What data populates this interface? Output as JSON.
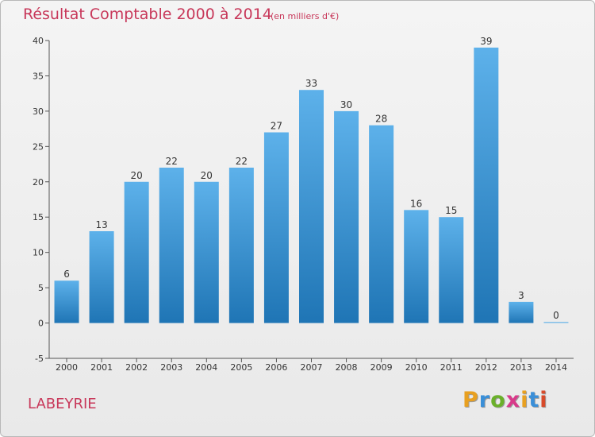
{
  "title": "Résultat Comptable 2000 à 2014",
  "subtitle": "(en milliers d'€)",
  "commune": "LABEYRIE",
  "logo": {
    "text": "Proxiti",
    "colors": [
      "#e8a020",
      "#3a8fd8",
      "#6ab02a",
      "#d83a8a",
      "#e8a020",
      "#3a8fd8",
      "#d84a2a"
    ]
  },
  "colors": {
    "bar_top": "#5db1ea",
    "bar_bottom": "#1f75b5",
    "title": "#c8385a"
  },
  "chart_data": {
    "type": "bar",
    "categories": [
      "2000",
      "2001",
      "2002",
      "2003",
      "2004",
      "2005",
      "2006",
      "2007",
      "2008",
      "2009",
      "2010",
      "2011",
      "2012",
      "2013",
      "2014"
    ],
    "values": [
      6,
      13,
      20,
      22,
      20,
      22,
      27,
      33,
      30,
      28,
      16,
      15,
      39,
      3,
      0
    ],
    "ylim": [
      -5,
      40
    ],
    "yticks": [
      -5,
      0,
      5,
      10,
      15,
      20,
      25,
      30,
      35,
      40
    ],
    "title": "Résultat Comptable 2000 à 2014",
    "xlabel": "",
    "ylabel": "",
    "grid": false,
    "legend": "none"
  }
}
